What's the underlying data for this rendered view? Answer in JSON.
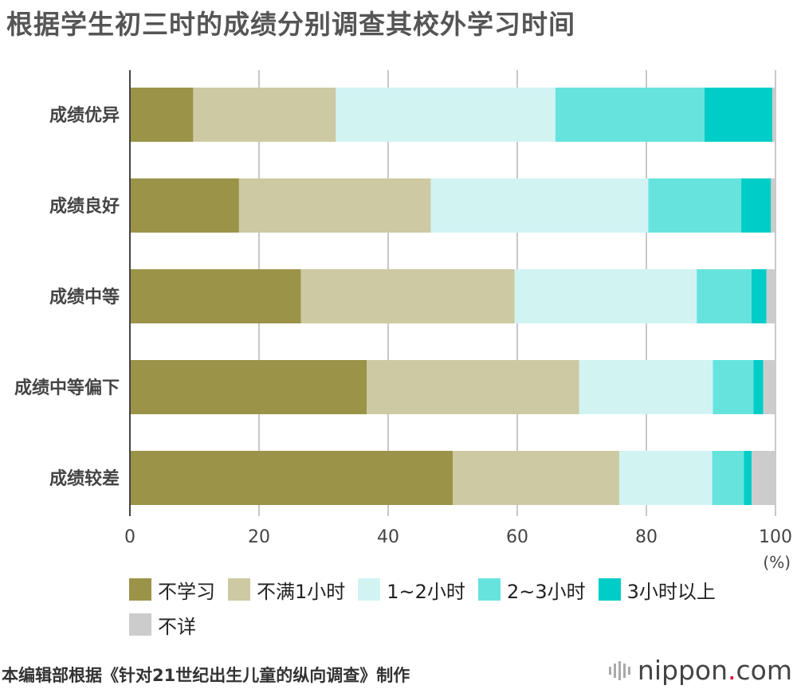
{
  "title": "根据学生初三时的成绩分别调查其校外学习时间",
  "chart_data": {
    "type": "bar",
    "orientation": "horizontal",
    "stacked": true,
    "categories": [
      "成绩优异",
      "成绩良好",
      "成绩中等",
      "成绩中等偏下",
      "成绩较差"
    ],
    "series": [
      {
        "name": "不学习",
        "color": "#9b9348",
        "values": [
          9.8,
          16.9,
          26.5,
          36.7,
          50.0
        ]
      },
      {
        "name": "不满1小时",
        "color": "#cdc9a2",
        "values": [
          22.1,
          29.7,
          33.1,
          32.9,
          25.8
        ]
      },
      {
        "name": "1~2小时",
        "color": "#d1f4f3",
        "values": [
          34.0,
          33.7,
          28.2,
          20.7,
          14.4
        ]
      },
      {
        "name": "2~3小时",
        "color": "#67e3de",
        "values": [
          23.1,
          14.4,
          8.5,
          6.3,
          4.9
        ]
      },
      {
        "name": "3小时以上",
        "color": "#00cdc8",
        "values": [
          10.5,
          4.6,
          2.3,
          1.5,
          1.2
        ]
      },
      {
        "name": "不详",
        "color": "#cccccc",
        "values": [
          0.5,
          0.7,
          1.4,
          1.9,
          3.7
        ]
      }
    ],
    "xlim": [
      0,
      100
    ],
    "xticks": [
      0,
      20,
      40,
      60,
      80,
      100
    ],
    "xunit": "(%)",
    "grid": true,
    "legend_position": "bottom"
  },
  "source": "本编辑部根据《针对21世纪出生儿童的纵向调查》制作",
  "logo": {
    "name": "nippon",
    "dot": ".",
    "suffix": "com"
  }
}
